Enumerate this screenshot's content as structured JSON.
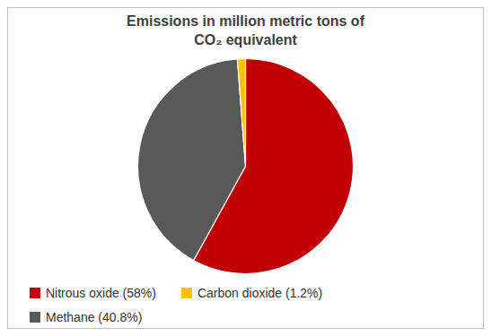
{
  "chart_data": {
    "type": "pie",
    "title": "Emissions in million metric tons of\nCO₂ equivalent",
    "categories": [
      "Nitrous oxide (58%)",
      "Methane (40.8%)",
      "Carbon dioxide (1.2%)"
    ],
    "values": [
      58,
      40.8,
      1.2
    ],
    "colors": [
      "#c00000",
      "#595959",
      "#ffc000"
    ],
    "legend": "bottom"
  }
}
